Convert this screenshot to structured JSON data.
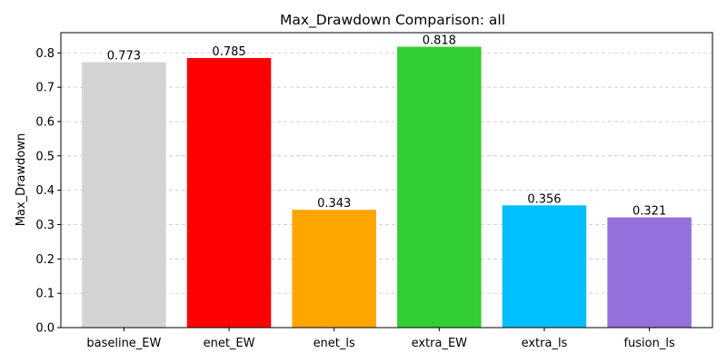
{
  "chart_data": {
    "type": "bar",
    "title": "Max_Drawdown Comparison: all",
    "xlabel": "",
    "ylabel": "Max_Drawdown",
    "categories": [
      "baseline_EW",
      "enet_EW",
      "enet_ls",
      "extra_EW",
      "extra_ls",
      "fusion_ls"
    ],
    "values": [
      0.773,
      0.785,
      0.343,
      0.818,
      0.356,
      0.321
    ],
    "value_labels": [
      "0.773",
      "0.785",
      "0.343",
      "0.818",
      "0.356",
      "0.321"
    ],
    "colors": [
      "#d3d3d3",
      "#ff0000",
      "#ffa500",
      "#32cd32",
      "#00bfff",
      "#9370db"
    ],
    "ylim": [
      0,
      0.8589
    ],
    "yticks": [
      0.0,
      0.1,
      0.2,
      0.3,
      0.4,
      0.5,
      0.6,
      0.7,
      0.8
    ],
    "ytick_labels": [
      "0.0",
      "0.1",
      "0.2",
      "0.3",
      "0.4",
      "0.5",
      "0.6",
      "0.7",
      "0.8"
    ],
    "grid": "y-axis dashed",
    "legend": "none"
  }
}
